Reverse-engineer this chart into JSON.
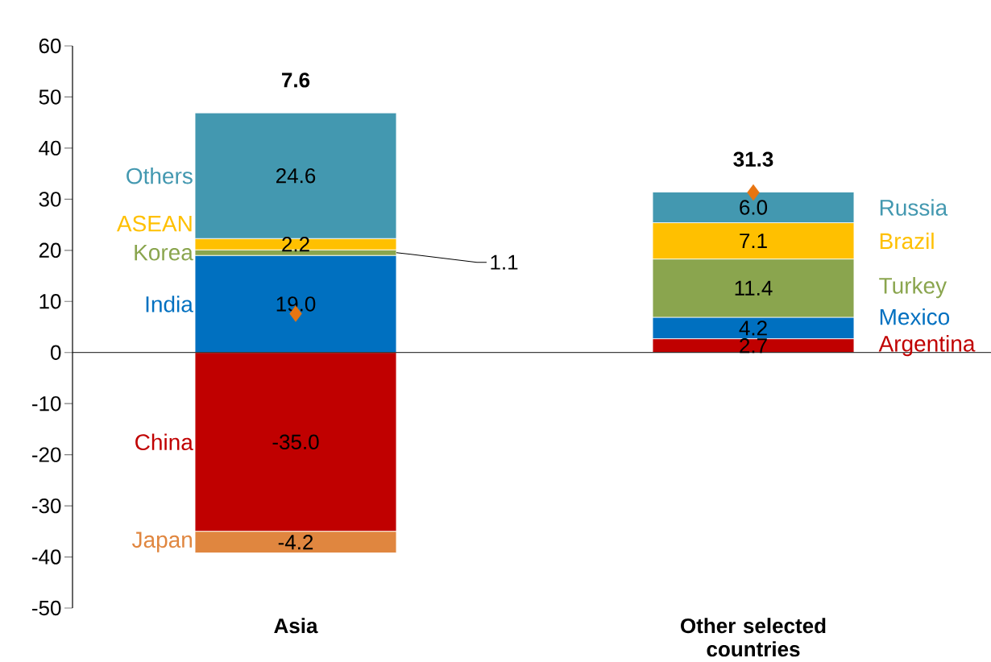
{
  "chart_data": {
    "type": "bar",
    "stacked": true,
    "categories": [
      "Asia",
      "Other selected countries"
    ],
    "ylim": [
      -50,
      60
    ],
    "yticks": [
      -50,
      -40,
      -30,
      -20,
      -10,
      0,
      10,
      20,
      30,
      40,
      50,
      60
    ],
    "totals": [
      "7.6",
      "31.3"
    ],
    "marker": "diamond",
    "grid": false,
    "ref_lines": [
      {
        "axis": "y",
        "value": 0,
        "color": "#000000"
      }
    ],
    "series": [
      {
        "name": "India",
        "color": "#0070c0",
        "values": [
          19.0,
          null
        ],
        "value_labels": [
          "19.0",
          null
        ]
      },
      {
        "name": "Korea",
        "color": "#8aa54e",
        "values": [
          1.1,
          null
        ],
        "value_labels": [
          "1.1",
          null
        ]
      },
      {
        "name": "ASEAN",
        "color": "#ffc000",
        "values": [
          2.2,
          null
        ],
        "value_labels": [
          "2.2",
          null
        ]
      },
      {
        "name": "Others",
        "color": "#4398b0",
        "values": [
          24.6,
          null
        ],
        "value_labels": [
          "24.6",
          null
        ]
      },
      {
        "name": "China",
        "color": "#c00000",
        "values": [
          -35.0,
          null
        ],
        "value_labels": [
          "-35.0",
          null
        ]
      },
      {
        "name": "Japan",
        "color": "#e0863f",
        "values": [
          -4.2,
          null
        ],
        "value_labels": [
          "-4.2",
          null
        ]
      },
      {
        "name": "Argentina",
        "color": "#c00000",
        "values": [
          null,
          2.7
        ],
        "value_labels": [
          null,
          "2.7"
        ]
      },
      {
        "name": "Mexico",
        "color": "#0070c0",
        "values": [
          null,
          4.2
        ],
        "value_labels": [
          null,
          "4.2"
        ]
      },
      {
        "name": "Turkey",
        "color": "#8aa54e",
        "values": [
          null,
          11.4
        ],
        "value_labels": [
          null,
          "11.4"
        ]
      },
      {
        "name": "Brazil",
        "color": "#ffc000",
        "values": [
          null,
          7.1
        ],
        "value_labels": [
          null,
          "7.1"
        ]
      },
      {
        "name": "Russia",
        "color": "#4398b0",
        "values": [
          null,
          6.0
        ],
        "value_labels": [
          null,
          "6.0"
        ]
      },
      {
        "type": "scatter",
        "color": "#e87511",
        "values": [
          7.6,
          31.3
        ]
      }
    ]
  }
}
